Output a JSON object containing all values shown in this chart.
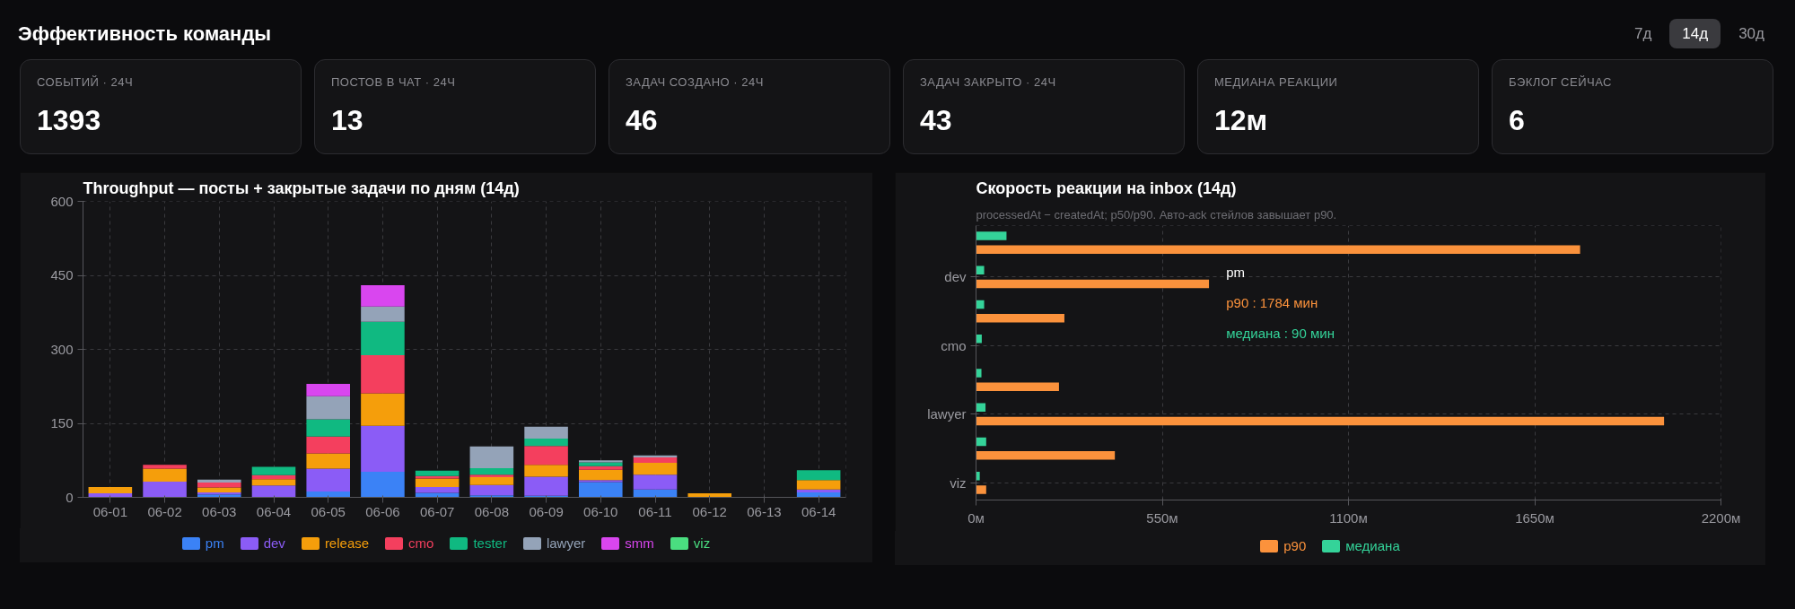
{
  "chart_data": [
    {
      "type": "other",
      "title": "Эффективность команды",
      "annotations": [
        "7д",
        "14д",
        "30д"
      ]
    },
    {
      "type": "other",
      "annotations": [
        "СОБЫТИЙ · 24Ч",
        "1393",
        "ПОСТОВ В ЧАТ · 24Ч",
        "13",
        "ЗАДАЧ СОЗДАНО · 24Ч",
        "46",
        "ЗАДАЧ ЗАКРЫТО · 24Ч",
        "43",
        "МЕДИАНА РЕАКЦИИ",
        "12м",
        "БЭКЛОГ СЕЙЧАС",
        "6"
      ]
    },
    {
      "type": "bar",
      "title": "Throughput — посты + закрытые задачи по дням (14д)",
      "stacked": true,
      "grid": true,
      "legend": "bottom",
      "categories": [
        "06-01",
        "06-02",
        "06-03",
        "06-04",
        "06-05",
        "06-06",
        "06-07",
        "06-08",
        "06-09",
        "06-10",
        "06-11",
        "06-12",
        "06-13",
        "06-14"
      ],
      "ylim": [
        0,
        600
      ],
      "yticks": [
        0,
        150,
        300,
        450,
        600
      ],
      "series": [
        {
          "name": "pm",
          "color": "#3b82f6",
          "values": [
            null,
            null,
            6,
            null,
            12,
            52,
            9,
            4,
            3,
            31,
            16,
            null,
            null,
            10
          ]
        },
        {
          "name": "dev",
          "color": "#8b5cf6",
          "values": [
            8,
            32,
            4,
            24,
            46,
            93,
            12,
            21,
            39,
            4,
            30,
            null,
            null,
            6
          ]
        },
        {
          "name": "release",
          "color": "#f59e0b",
          "values": [
            13,
            26,
            10,
            13,
            31,
            66,
            17,
            16,
            24,
            21,
            24,
            8,
            null,
            19
          ]
        },
        {
          "name": "cmo",
          "color": "#f43f5e",
          "values": [
            null,
            8,
            10,
            8,
            34,
            77,
            5,
            5,
            38,
            7,
            11,
            null,
            null,
            null
          ]
        },
        {
          "name": "tester",
          "color": "#10b981",
          "values": [
            null,
            null,
            null,
            17,
            35,
            68,
            11,
            13,
            15,
            8,
            null,
            null,
            null,
            20
          ]
        },
        {
          "name": "lawyer",
          "color": "#94a3b8",
          "values": [
            null,
            null,
            6,
            null,
            47,
            31,
            null,
            44,
            24,
            4,
            4,
            null,
            null,
            null
          ]
        },
        {
          "name": "smm",
          "color": "#d946ef",
          "values": [
            null,
            null,
            null,
            null,
            25,
            43,
            null,
            null,
            null,
            null,
            null,
            null,
            null,
            null
          ]
        },
        {
          "name": "viz",
          "color": "#4ade80",
          "values": [
            null,
            null,
            null,
            null,
            null,
            null,
            null,
            null,
            null,
            null,
            null,
            null,
            null,
            null
          ]
        }
      ]
    },
    {
      "type": "bar",
      "orientation": "horizontal",
      "title": "Скорость реакции на inbox (14д)",
      "subtitle": "processedAt − createdAt; p50/p90. Авто-ack стейлов завышает p90.",
      "grid": true,
      "legend": "bottom",
      "categories": [
        null,
        "dev",
        null,
        "cmo",
        null,
        "lawyer",
        null,
        "viz"
      ],
      "xlim": [
        0,
        2200
      ],
      "xticks": [
        {
          "value": 0,
          "label": "0м"
        },
        {
          "value": 550,
          "label": "550м"
        },
        {
          "value": 1100,
          "label": "1100м"
        },
        {
          "value": 1650,
          "label": "1650м"
        },
        {
          "value": 2200,
          "label": "2200м"
        }
      ],
      "series": [
        {
          "name": "p90",
          "color": "#fb923c",
          "values": [
            1784,
            688,
            261,
            null,
            245,
            2032,
            410,
            30
          ]
        },
        {
          "name": "медиана",
          "color": "#34d399",
          "values": [
            90,
            24,
            24,
            17,
            16,
            28,
            30,
            11
          ]
        }
      ],
      "annotations": [
        "pm",
        "p90 : 1784 мин",
        "медиана : 90 мин"
      ]
    }
  ]
}
